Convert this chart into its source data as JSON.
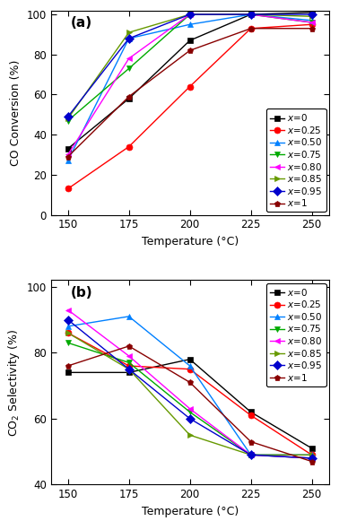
{
  "temperatures": [
    150,
    175,
    200,
    225,
    250
  ],
  "co_conversion": {
    "x=0": [
      33,
      58,
      87,
      100,
      101
    ],
    "x=0.25": [
      13,
      34,
      64,
      93,
      95
    ],
    "x=0.50": [
      27,
      88,
      95,
      100,
      97
    ],
    "x=0.75": [
      47,
      73,
      100,
      100,
      96
    ],
    "x=0.80": [
      30,
      78,
      100,
      100,
      96
    ],
    "x=0.85": [
      48,
      91,
      100,
      100,
      99
    ],
    "x=0.95": [
      49,
      88,
      100,
      100,
      100
    ],
    "x=1": [
      29,
      59,
      82,
      93,
      93
    ]
  },
  "co2_selectivity": {
    "x=0": [
      74,
      74,
      78,
      62,
      51
    ],
    "x=0.25": [
      86,
      76,
      75,
      61,
      49
    ],
    "x=0.50": [
      88,
      91,
      76,
      49,
      49
    ],
    "x=0.75": [
      83,
      77,
      62,
      49,
      48
    ],
    "x=0.80": [
      93,
      79,
      63,
      49,
      48
    ],
    "x=0.85": [
      86,
      75,
      55,
      49,
      49
    ],
    "x=0.95": [
      90,
      75,
      60,
      49,
      48
    ],
    "x=1": [
      76,
      82,
      71,
      53,
      47
    ]
  },
  "series": [
    {
      "label": "x=0",
      "color": "#000000",
      "marker": "s",
      "markersize": 5
    },
    {
      "label": "x=0.25",
      "color": "#ff0000",
      "marker": "o",
      "markersize": 5
    },
    {
      "label": "x=0.50",
      "color": "#0080ff",
      "marker": "^",
      "markersize": 5
    },
    {
      "label": "x=0.75",
      "color": "#00aa00",
      "marker": "v",
      "markersize": 5
    },
    {
      "label": "x=0.80",
      "color": "#ff00ff",
      "marker": "<",
      "markersize": 5
    },
    {
      "label": "x=0.85",
      "color": "#669900",
      "marker": ">",
      "markersize": 5
    },
    {
      "label": "x=0.95",
      "color": "#0000cc",
      "marker": "D",
      "markersize": 5
    },
    {
      "label": "x=1",
      "color": "#880000",
      "marker": "p",
      "markersize": 5
    }
  ],
  "subplot_a": {
    "ylabel": "CO Conversion (%)",
    "ylim": [
      0,
      102
    ],
    "yticks": [
      0,
      20,
      40,
      60,
      80,
      100
    ],
    "label": "(a)"
  },
  "subplot_b": {
    "ylabel": "CO$_2$ Selectivity (%)",
    "ylim": [
      40,
      102
    ],
    "yticks": [
      40,
      60,
      80,
      100
    ],
    "label": "(b)"
  },
  "xlabel": "Temperature (°C)",
  "xticks": [
    150,
    175,
    200,
    225,
    250
  ],
  "linewidth": 1.0,
  "legend_fontsize": 7.5,
  "axis_label_fontsize": 9,
  "tick_fontsize": 8.5
}
